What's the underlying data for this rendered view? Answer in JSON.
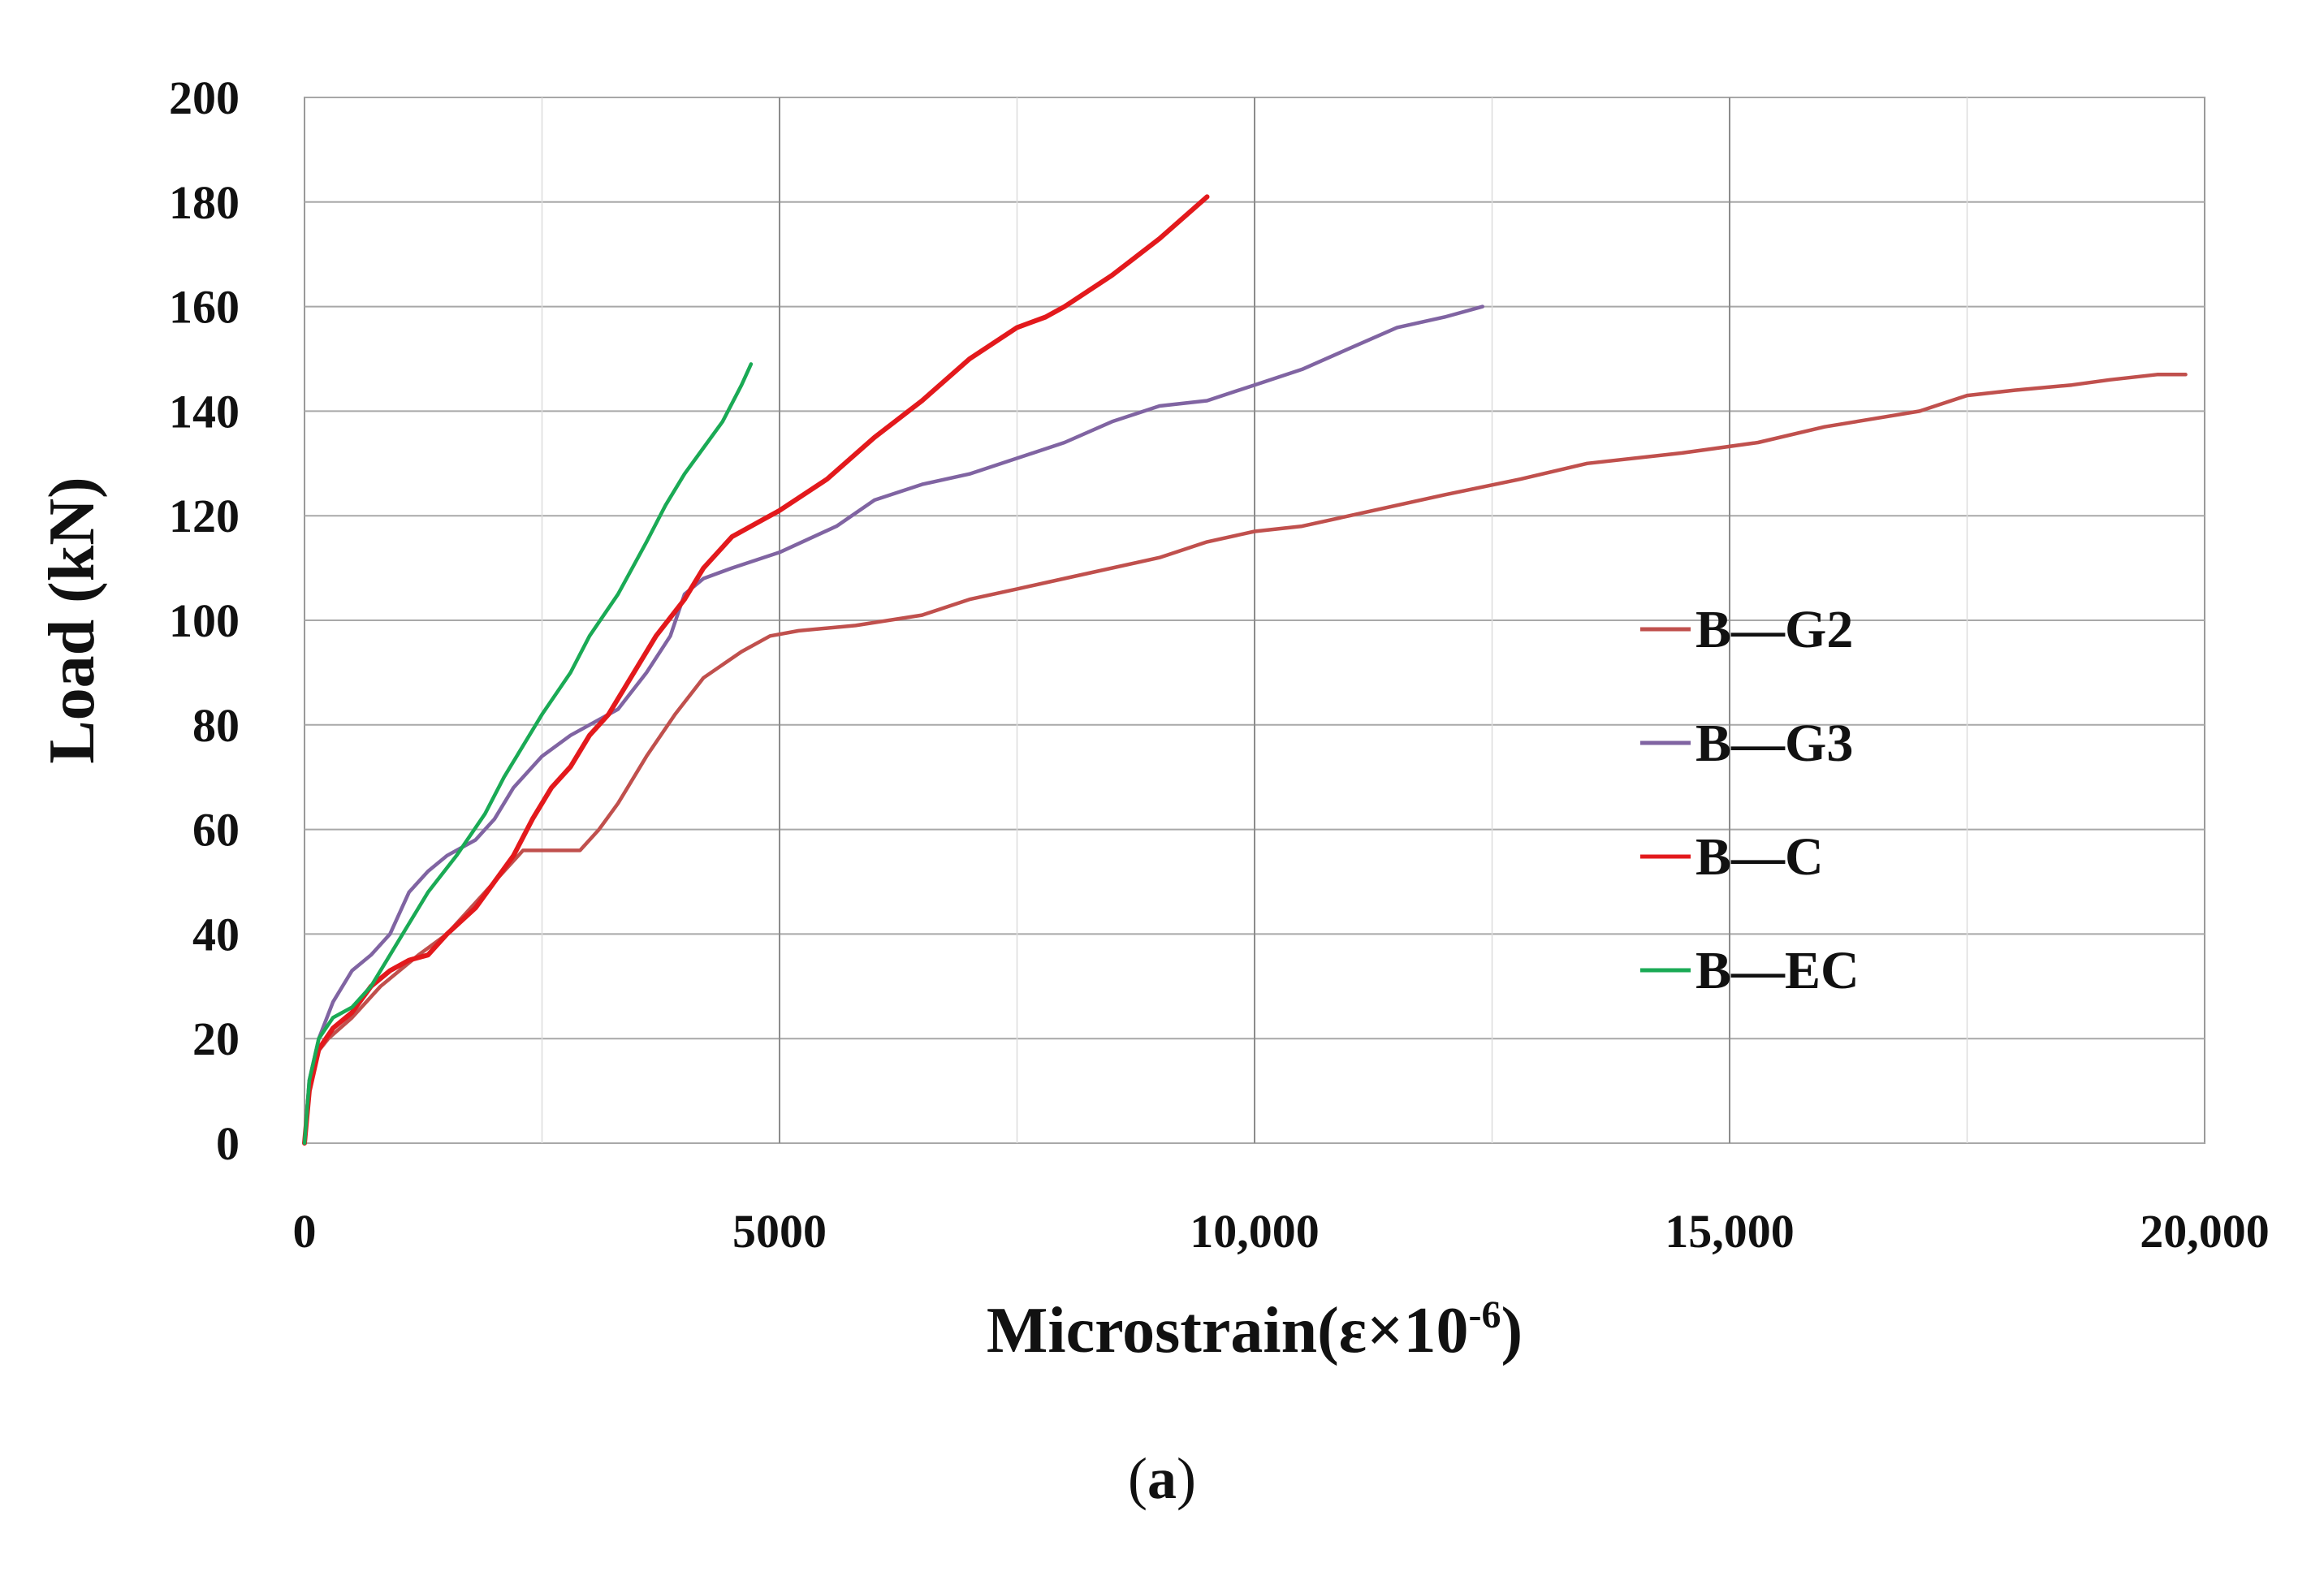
{
  "chart_data": {
    "type": "line",
    "title": "",
    "xlabel": "Microstrain(ε×10",
    "xlabel_sup": "-6",
    "xlabel_close": ")",
    "ylabel": "Load (kN)",
    "xlim": [
      0,
      20000
    ],
    "ylim": [
      0,
      200
    ],
    "x_ticks": [
      0,
      5000,
      10000,
      15000,
      20000
    ],
    "x_tick_labels": [
      "0",
      "5000",
      "10,000",
      "15,000",
      "20,000"
    ],
    "y_ticks": [
      0,
      20,
      40,
      60,
      80,
      100,
      120,
      140,
      160,
      180,
      200
    ],
    "y_tick_labels": [
      "0",
      "20",
      "40",
      "60",
      "80",
      "100",
      "120",
      "140",
      "160",
      "180",
      "200"
    ],
    "grid": true,
    "legend_position": "right",
    "series": [
      {
        "name": "B—G2",
        "color": "#c0504d",
        "x": [
          0,
          50,
          120,
          250,
          500,
          800,
          1200,
          1500,
          2000,
          2300,
          2500,
          2900,
          3100,
          3300,
          3600,
          3900,
          4200,
          4600,
          4900,
          5200,
          5800,
          6500,
          7000,
          7500,
          8000,
          9000,
          9500,
          10000,
          10500,
          11000,
          12000,
          12800,
          13500,
          14500,
          15300,
          16000,
          17000,
          17500,
          18000,
          18600,
          19000,
          19500,
          19800
        ],
        "y": [
          0,
          10,
          17,
          20,
          24,
          30,
          36,
          40,
          50,
          56,
          56,
          56,
          60,
          65,
          74,
          82,
          89,
          94,
          97,
          98,
          99,
          101,
          104,
          106,
          108,
          112,
          115,
          117,
          118,
          120,
          124,
          127,
          130,
          132,
          134,
          137,
          140,
          143,
          144,
          145,
          146,
          147,
          147
        ]
      },
      {
        "name": "B—G3",
        "color": "#8064a2",
        "x": [
          0,
          50,
          150,
          300,
          500,
          700,
          900,
          1100,
          1300,
          1500,
          1800,
          2000,
          2200,
          2500,
          2800,
          3000,
          3300,
          3600,
          3850,
          4000,
          4200,
          4500,
          5000,
          5600,
          6000,
          6500,
          7000,
          7500,
          8000,
          8500,
          9000,
          9500,
          10000,
          10500,
          11000,
          11500,
          12000,
          12400
        ],
        "y": [
          0,
          12,
          20,
          27,
          33,
          36,
          40,
          48,
          52,
          55,
          58,
          62,
          68,
          74,
          78,
          80,
          83,
          90,
          97,
          105,
          108,
          110,
          113,
          118,
          123,
          126,
          128,
          131,
          134,
          138,
          141,
          142,
          145,
          148,
          152,
          156,
          158,
          160
        ]
      },
      {
        "name": "B—C",
        "color": "#e3191c",
        "x": [
          0,
          50,
          150,
          300,
          500,
          700,
          900,
          1100,
          1300,
          1500,
          1800,
          2000,
          2200,
          2400,
          2600,
          2800,
          3000,
          3200,
          3400,
          3700,
          4000,
          4200,
          4500,
          4800,
          5000,
          5500,
          6000,
          6500,
          7000,
          7500,
          7800,
          8000,
          8500,
          9000,
          9500
        ],
        "y": [
          0,
          10,
          18,
          22,
          25,
          30,
          33,
          35,
          36,
          40,
          45,
          50,
          55,
          62,
          68,
          72,
          78,
          82,
          88,
          97,
          104,
          110,
          116,
          119,
          121,
          127,
          135,
          142,
          150,
          156,
          158,
          160,
          166,
          173,
          181
        ]
      },
      {
        "name": "B—EC",
        "color": "#1aaa55",
        "x": [
          0,
          50,
          150,
          300,
          500,
          700,
          900,
          1100,
          1300,
          1600,
          1900,
          2100,
          2300,
          2500,
          2800,
          3000,
          3300,
          3600,
          3800,
          4000,
          4200,
          4400,
          4600,
          4700
        ],
        "y": [
          0,
          12,
          20,
          24,
          26,
          30,
          36,
          42,
          48,
          55,
          63,
          70,
          76,
          82,
          90,
          97,
          105,
          115,
          122,
          128,
          133,
          138,
          145,
          149
        ]
      }
    ]
  },
  "caption": {
    "open": "(",
    "label": "a",
    "close": ")"
  }
}
